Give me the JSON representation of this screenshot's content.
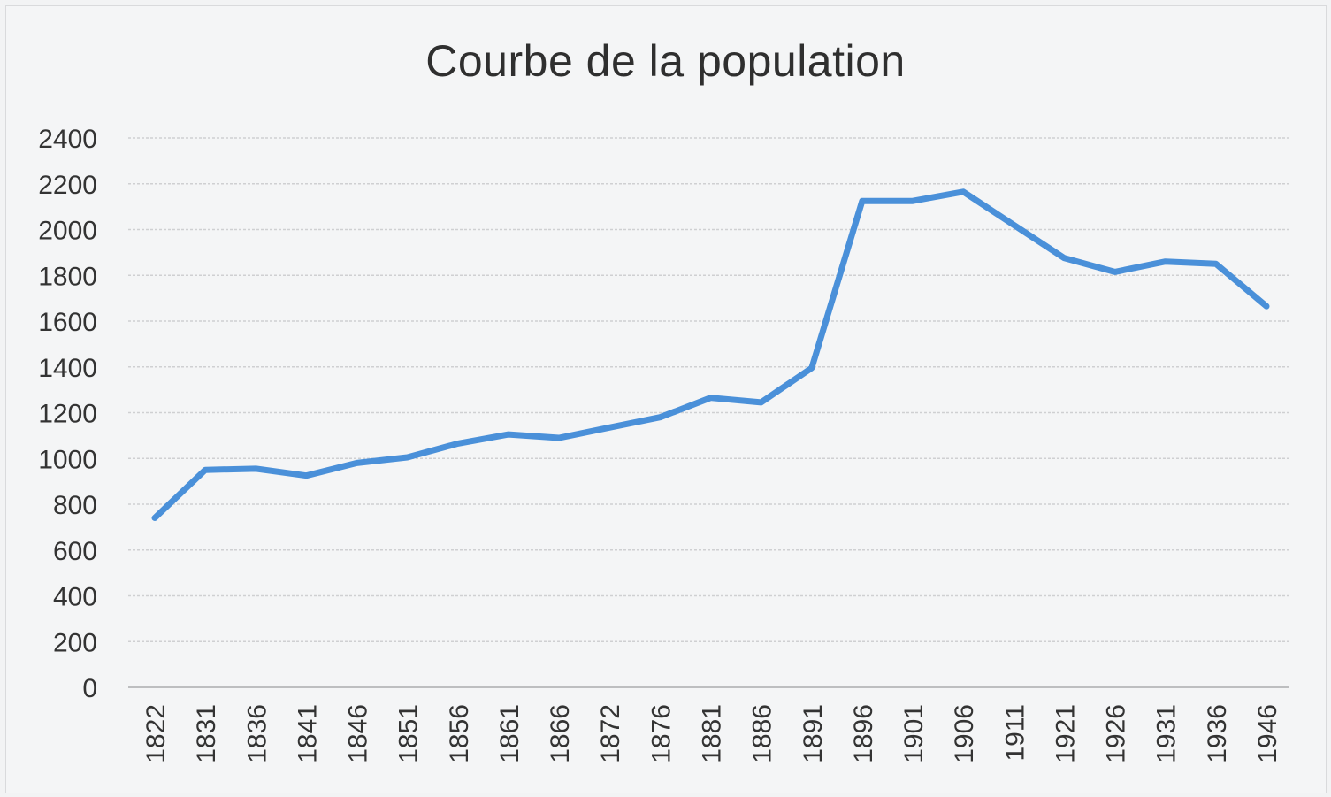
{
  "chart_data": {
    "type": "line",
    "title": "Courbe de la population",
    "xlabel": "",
    "ylabel": "",
    "ylim": [
      0,
      2400
    ],
    "y_ticks": [
      "0",
      "200",
      "400",
      "600",
      "800",
      "1000",
      "1200",
      "1400",
      "1600",
      "1800",
      "2000",
      "2200",
      "2400"
    ],
    "grid": true,
    "legend": "none",
    "categories": [
      "1822",
      "1831",
      "1836",
      "1841",
      "1846",
      "1851",
      "1856",
      "1861",
      "1866",
      "1872",
      "1876",
      "1881",
      "1886",
      "1891",
      "1896",
      "1901",
      "1906",
      "1911",
      "1921",
      "1926",
      "1931",
      "1936",
      "1946"
    ],
    "series": [
      {
        "color": "#4a90d9",
        "values": [
          740,
          950,
          955,
          925,
          980,
          1005,
          1065,
          1105,
          1090,
          1135,
          1180,
          1265,
          1245,
          1395,
          2125,
          2125,
          2165,
          2020,
          1875,
          1815,
          1860,
          1850,
          1665
        ]
      }
    ]
  }
}
